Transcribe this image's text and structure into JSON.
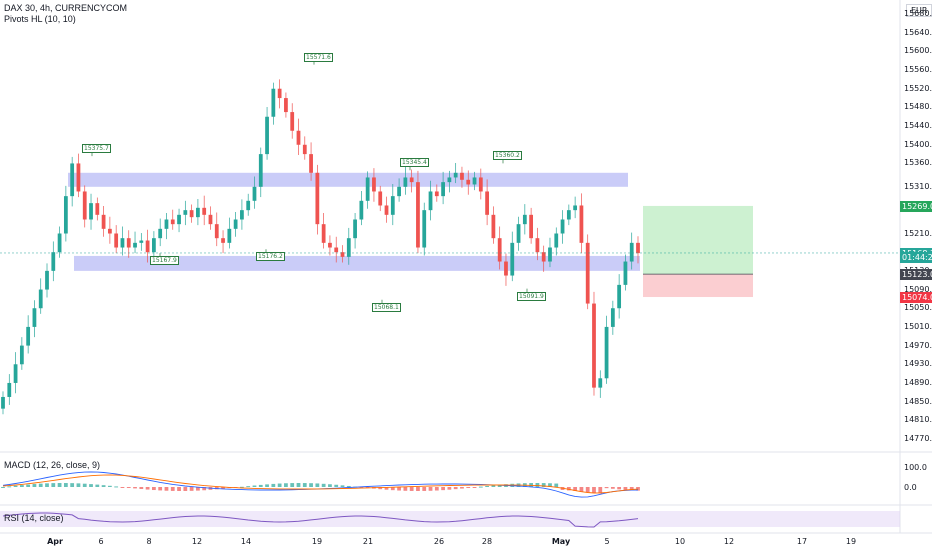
{
  "header": {
    "symbol_line": "DAX 30, 4h, CURRENCYCOM",
    "indicator": "Pivots HL (10, 10)",
    "currency": "EUR"
  },
  "price_axis": {
    "ticks": [
      "15680.0",
      "15640.0",
      "15600.0",
      "15560.0",
      "15520.0",
      "15480.0",
      "15440.0",
      "15400.0",
      "15360.0",
      "15310.0",
      "15210.0",
      "15130.0",
      "15090.0",
      "15050.0",
      "15010.0",
      "14970.0",
      "14930.0",
      "14890.0",
      "14850.0",
      "14810.0",
      "14770.0"
    ],
    "badges": [
      {
        "text": "15269.0",
        "color": "#26a65b",
        "value": 15269
      },
      {
        "text": "15168.3",
        "color": "#26a69a",
        "value": 15168.3
      },
      {
        "text": "01:44:25",
        "color": "#26a69a",
        "value": 15159
      },
      {
        "text": "15123.0",
        "color": "#434651",
        "value": 15123
      },
      {
        "text": "15074.0",
        "color": "#f23645",
        "value": 15074
      }
    ]
  },
  "pivots": [
    {
      "label": "15375.7",
      "value": 15375.7
    },
    {
      "label": "15167.9",
      "value": 15167.9
    },
    {
      "label": "15571.6",
      "value": 15571.6
    },
    {
      "label": "15176.2",
      "value": 15176.2
    },
    {
      "label": "15345.4",
      "value": 15345.4
    },
    {
      "label": "15068.1",
      "value": 15068.1
    },
    {
      "label": "15360.2",
      "value": 15360.2
    },
    {
      "label": "15091.9",
      "value": 15091.9
    }
  ],
  "date_axis": [
    {
      "text": "Apr",
      "bold": true
    },
    {
      "text": "6",
      "bold": false
    },
    {
      "text": "8",
      "bold": false
    },
    {
      "text": "12",
      "bold": false
    },
    {
      "text": "14",
      "bold": false
    },
    {
      "text": "19",
      "bold": false
    },
    {
      "text": "21",
      "bold": false
    },
    {
      "text": "26",
      "bold": false
    },
    {
      "text": "28",
      "bold": false
    },
    {
      "text": "May",
      "bold": true
    },
    {
      "text": "5",
      "bold": false
    },
    {
      "text": "10",
      "bold": false
    },
    {
      "text": "12",
      "bold": false
    },
    {
      "text": "17",
      "bold": false
    },
    {
      "text": "19",
      "bold": false
    }
  ],
  "macd": {
    "label": "MACD (12, 26, close, 9)",
    "ticks": [
      "100.0",
      "0.0"
    ]
  },
  "rsi": {
    "label": "RSI (14, close)"
  },
  "chart_data": {
    "type": "candlestick",
    "timeframe": "4h",
    "y_range": [
      14760,
      15700
    ],
    "zones": [
      {
        "low": 15310,
        "high": 15340
      },
      {
        "low": 15130,
        "high": 15162
      }
    ],
    "trade_box": {
      "entry": 15123,
      "target": 15269,
      "stop": 15074
    },
    "current_price": 15168.3,
    "closes": [
      14860,
      14890,
      14930,
      14970,
      15010,
      15050,
      15090,
      15130,
      15170,
      15210,
      15290,
      15360,
      15300,
      15240,
      15275,
      15250,
      15220,
      15210,
      15180,
      15200,
      15180,
      15190,
      15195,
      15170,
      15200,
      15220,
      15240,
      15230,
      15250,
      15260,
      15245,
      15265,
      15250,
      15230,
      15200,
      15190,
      15220,
      15240,
      15260,
      15280,
      15310,
      15380,
      15460,
      15520,
      15500,
      15470,
      15430,
      15400,
      15380,
      15340,
      15230,
      15190,
      15180,
      15170,
      15160,
      15200,
      15240,
      15280,
      15330,
      15300,
      15270,
      15250,
      15290,
      15310,
      15330,
      15320,
      15180,
      15260,
      15300,
      15290,
      15320,
      15330,
      15340,
      15325,
      15315,
      15330,
      15300,
      15250,
      15200,
      15150,
      15120,
      15190,
      15230,
      15250,
      15200,
      15170,
      15150,
      15180,
      15210,
      15240,
      15260,
      15270,
      15190,
      15060,
      14880,
      14900,
      15010,
      15050,
      15100,
      15150,
      15190,
      15168
    ]
  }
}
